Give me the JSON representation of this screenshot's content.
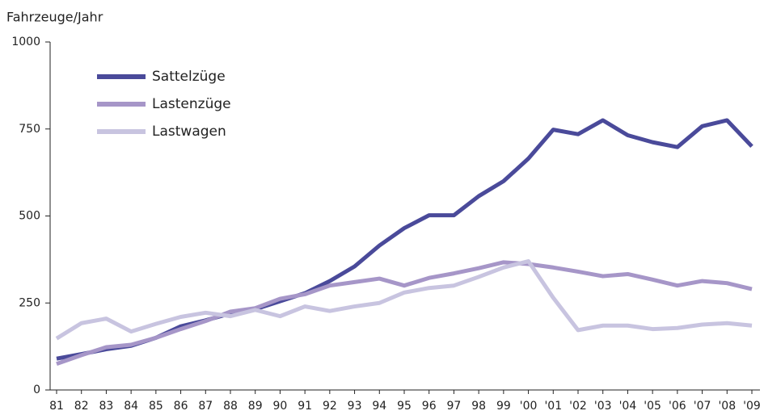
{
  "chart_data": {
    "type": "line",
    "y_label": "Fahrzeuge/Jahr",
    "categories": [
      "81",
      "82",
      "83",
      "84",
      "85",
      "86",
      "87",
      "88",
      "89",
      "90",
      "91",
      "92",
      "93",
      "94",
      "95",
      "96",
      "97",
      "98",
      "99",
      "'00",
      "'01",
      "'02",
      "'03",
      "'04",
      "'05",
      "'06",
      "'07",
      "'08",
      "'09"
    ],
    "series": [
      {
        "name": "Sattelzüge",
        "color": "#4a4a9a",
        "values": [
          90,
          103,
          117,
          127,
          150,
          183,
          200,
          220,
          232,
          255,
          278,
          313,
          355,
          415,
          465,
          502,
          502,
          557,
          600,
          665,
          748,
          735,
          775,
          732,
          712,
          698,
          758,
          775,
          700
        ]
      },
      {
        "name": "Lastenzüge",
        "color": "#a696c8",
        "values": [
          75,
          100,
          123,
          130,
          150,
          175,
          198,
          225,
          235,
          262,
          275,
          300,
          310,
          320,
          300,
          322,
          335,
          350,
          367,
          362,
          352,
          340,
          327,
          333,
          317,
          300,
          313,
          307,
          290
        ]
      },
      {
        "name": "Lastwagen",
        "color": "#c8c4e0",
        "values": [
          148,
          192,
          205,
          168,
          190,
          210,
          222,
          212,
          230,
          212,
          240,
          227,
          240,
          250,
          280,
          293,
          300,
          325,
          352,
          370,
          265,
          172,
          185,
          185,
          175,
          178,
          188,
          192,
          185
        ]
      }
    ],
    "ylim": [
      0,
      1000
    ],
    "yticks": [
      0,
      250,
      500,
      750,
      1000
    ],
    "legend": "upper-left"
  }
}
